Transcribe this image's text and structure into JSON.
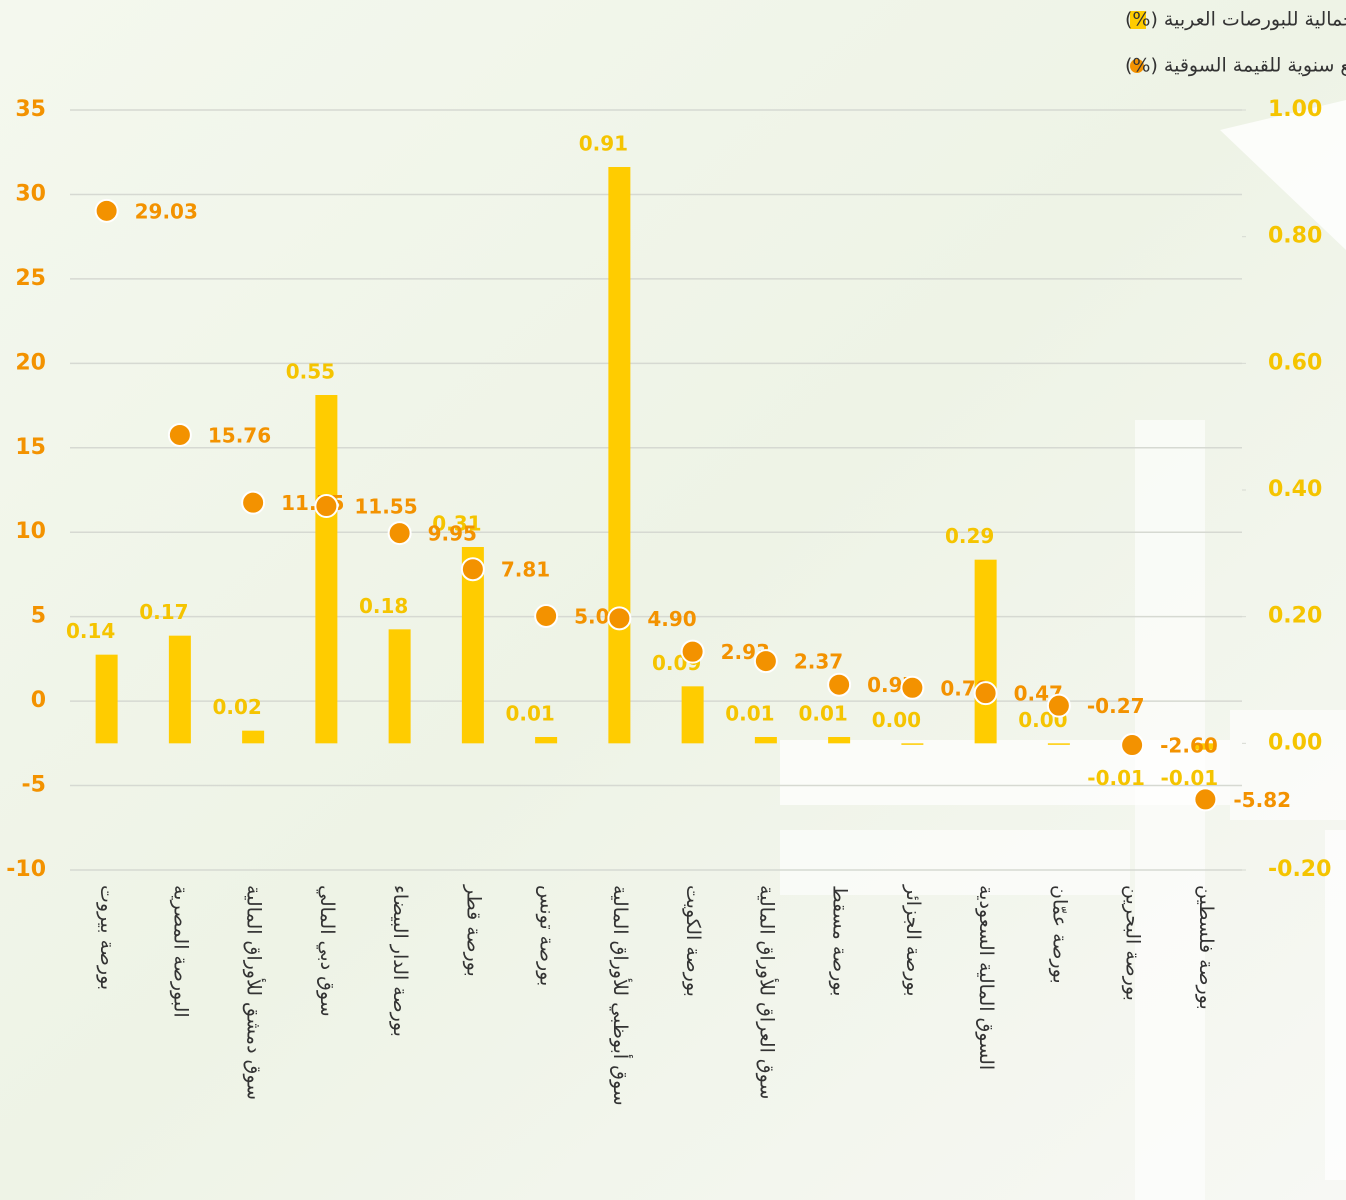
{
  "chart_data": {
    "type": "bar-dot",
    "categories": [
      "بورصة بيروت",
      "البورصة المصرية",
      "سوق دمشق للأوراق المالية",
      "سوق دبي المالي",
      "بورصة الدار البيضاء",
      "بورصة قطر",
      "بورصة تونس",
      "سوق أبوظبي للأوراق المالية",
      "بورصة الكويت",
      "سوق العراق للأوراق المالية",
      "بورصة مسقط",
      "بورصة الجزائر",
      "السوق المالية السعودية",
      "بورصة عمّان",
      "بورصة البحرين",
      "بورصة فلسطين"
    ],
    "series": [
      {
        "name": "نسبة مساهمة السوق في تغير القيمة السوقية الإجمالية للبورصات العربية (%)",
        "type": "bar",
        "axis": "y2",
        "color": "#ffcc00",
        "values": [
          0.14,
          0.17,
          0.02,
          0.55,
          0.18,
          0.31,
          0.01,
          0.91,
          0.09,
          0.01,
          0.01,
          0.0,
          0.29,
          0.0,
          -0.01,
          -0.01
        ],
        "value_labels": [
          "0.14",
          "0.17",
          "0.02",
          "0.55",
          "0.18",
          "0.31",
          "0.01",
          "0.91",
          "0.09",
          "0.01",
          "0.01",
          "0.00",
          "0.29",
          "0.00",
          "-0.01",
          "-0.01"
        ]
      },
      {
        "name": "نسبة التغير الربع سنوية للقيمة السوقية (%)",
        "type": "dot",
        "axis": "y",
        "color": "#f39200",
        "values": [
          29.03,
          15.76,
          11.75,
          11.55,
          9.95,
          7.81,
          5.04,
          4.9,
          2.93,
          2.37,
          0.97,
          0.79,
          0.47,
          -0.27,
          -2.6,
          -5.82
        ],
        "value_labels": [
          "29.03",
          "15.76",
          "11.75",
          "11.55",
          "9.95",
          "7.81",
          "5.04",
          "4.90",
          "2.93",
          "2.37",
          "0.97",
          "0.79",
          "0.47",
          "-0.27",
          "-2.60",
          "-5.82"
        ]
      }
    ],
    "ylim": [
      -10,
      35
    ],
    "yticks": [
      -10,
      -5,
      0,
      5,
      10,
      15,
      20,
      25,
      30,
      35
    ],
    "y2lim": [
      -0.2,
      1.0
    ],
    "y2ticks": [
      {
        "value": -0.2,
        "label": "-0.20"
      },
      {
        "value": 0,
        "label": "0.00"
      },
      {
        "value": 0.2,
        "label": "0.20"
      },
      {
        "value": 0.4,
        "label": "0.40"
      },
      {
        "value": 0.6,
        "label": "0.60"
      },
      {
        "value": 0.8,
        "label": "0.80"
      },
      {
        "value": 1.0,
        "label": "1.00"
      }
    ],
    "grid": true,
    "legend": "top-right"
  }
}
